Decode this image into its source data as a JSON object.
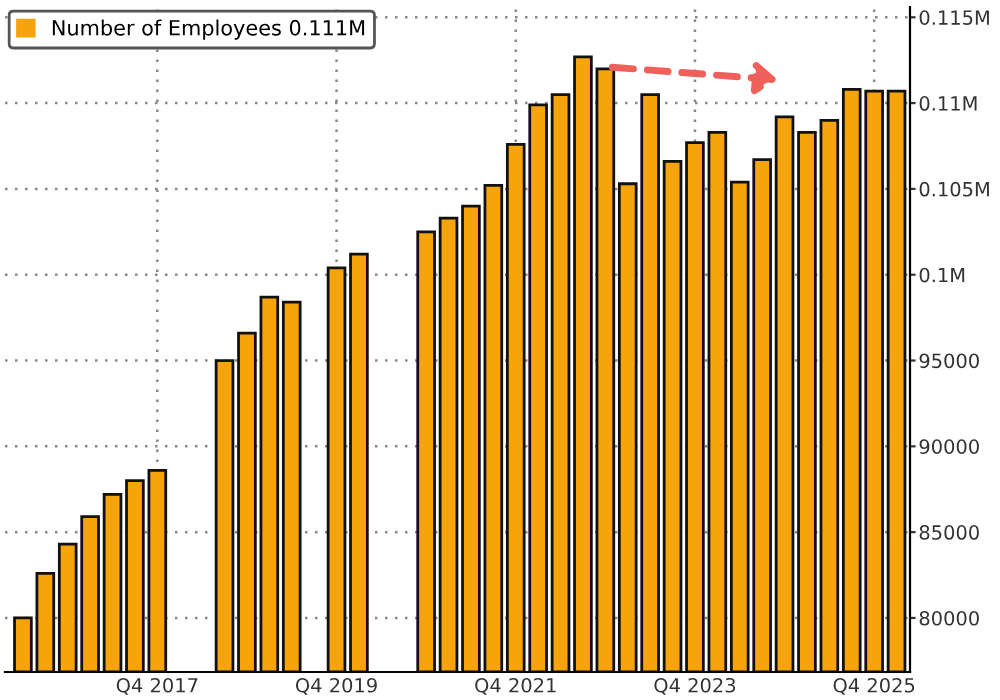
{
  "chart_data": {
    "type": "bar",
    "categories": [
      null,
      null,
      null,
      null,
      null,
      null,
      "Q4 2017",
      null,
      null,
      null,
      null,
      null,
      null,
      null,
      "Q4 2019",
      null,
      null,
      null,
      null,
      null,
      null,
      null,
      "Q4 2021",
      null,
      null,
      null,
      null,
      null,
      null,
      null,
      "Q4 2023",
      null,
      null,
      null,
      null,
      null,
      null,
      null,
      "Q4 2025",
      null
    ],
    "series": [
      {
        "name": "Number of Employees 0.111M",
        "color": "#f7a30c",
        "values": [
          80000,
          82600,
          84300,
          85900,
          87200,
          88000,
          88600,
          null,
          null,
          95000,
          96600,
          98700,
          98400,
          null,
          100400,
          101200,
          null,
          null,
          102500,
          103300,
          104000,
          105200,
          107600,
          109900,
          110500,
          112700,
          112000,
          105300,
          110500,
          106600,
          107700,
          108300,
          105400,
          106700,
          109200,
          108300,
          109000,
          110800,
          110700,
          110700
        ]
      }
    ],
    "ylim": [
      76850,
      115600
    ],
    "yticks": [
      80000,
      85000,
      90000,
      95000,
      {
        "value": 100000,
        "label": "0.1M"
      },
      {
        "value": 105000,
        "label": "0.105M"
      },
      {
        "value": 110000,
        "label": "0.11M"
      },
      {
        "value": 115000,
        "label": "0.115M"
      }
    ],
    "grid": true,
    "legend": "top left"
  }
}
